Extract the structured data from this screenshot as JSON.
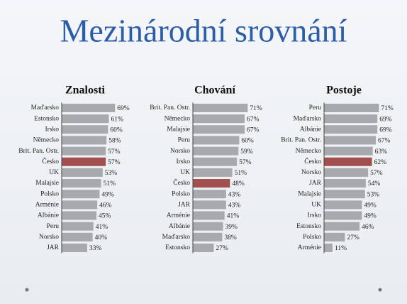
{
  "title": "Mezinárodní srovnání",
  "chart_data": [
    {
      "type": "bar",
      "title": "Znalosti",
      "categories": [
        "Maďarsko",
        "Estonsko",
        "Irsko",
        "Německo",
        "Brit. Pan. Ostr.",
        "Česko",
        "UK",
        "Malajsie",
        "Polsko",
        "Arménie",
        "Albánie",
        "Peru",
        "Norsko",
        "JAR"
      ],
      "values": [
        69,
        61,
        60,
        58,
        57,
        57,
        53,
        51,
        49,
        46,
        45,
        41,
        40,
        33
      ],
      "value_labels": [
        "69%",
        "61%",
        "60%",
        "58%",
        "57%",
        "57%",
        "53%",
        "51%",
        "49%",
        "46%",
        "45%",
        "41%",
        "40%",
        "33%"
      ],
      "colors": [
        "#a7a9ac",
        "#a7a9ac",
        "#a7a9ac",
        "#a7a9ac",
        "#a7a9ac",
        "#a14f4f",
        "#a7a9ac",
        "#a7a9ac",
        "#a7a9ac",
        "#a7a9ac",
        "#a7a9ac",
        "#a7a9ac",
        "#a7a9ac",
        "#a7a9ac"
      ]
    },
    {
      "type": "bar",
      "title": "Chování",
      "categories": [
        "Brit. Pan. Ostr.",
        "Německo",
        "Malajsie",
        "Peru",
        "Norsko",
        "Irsko",
        "UK",
        "Česko",
        "Polsko",
        "JAR",
        "Arménie",
        "Albánie",
        "Maďarsko",
        "Estonsko"
      ],
      "values": [
        71,
        67,
        67,
        60,
        59,
        57,
        51,
        48,
        43,
        43,
        41,
        39,
        38,
        27
      ],
      "value_labels": [
        "71%",
        "67%",
        "67%",
        "60%",
        "59%",
        "57%",
        "51%",
        "48%",
        "43%",
        "43%",
        "41%",
        "39%",
        "38%",
        "27%"
      ],
      "colors": [
        "#a7a9ac",
        "#a7a9ac",
        "#a7a9ac",
        "#a7a9ac",
        "#a7a9ac",
        "#a7a9ac",
        "#a7a9ac",
        "#a14f4f",
        "#a7a9ac",
        "#a7a9ac",
        "#a7a9ac",
        "#a7a9ac",
        "#a7a9ac",
        "#a7a9ac"
      ]
    },
    {
      "type": "bar",
      "title": "Postoje",
      "categories": [
        "Peru",
        "Maďarsko",
        "Albánie",
        "Brit. Pan. Ostr.",
        "Německo",
        "Česko",
        "Norsko",
        "JAR",
        "Malajsie",
        "UK",
        "Irsko",
        "Estonsko",
        "Polsko",
        "Arménie"
      ],
      "values": [
        71,
        69,
        69,
        67,
        63,
        62,
        57,
        54,
        53,
        49,
        49,
        46,
        27,
        11
      ],
      "value_labels": [
        "71%",
        "69%",
        "69%",
        "67%",
        "63%",
        "62%",
        "57%",
        "54%",
        "53%",
        "49%",
        "49%",
        "46%",
        "27%",
        "11%"
      ],
      "colors": [
        "#a7a9ac",
        "#a7a9ac",
        "#a7a9ac",
        "#a7a9ac",
        "#a7a9ac",
        "#a14f4f",
        "#a7a9ac",
        "#a7a9ac",
        "#a7a9ac",
        "#a7a9ac",
        "#a7a9ac",
        "#a7a9ac",
        "#a7a9ac",
        "#a7a9ac"
      ]
    }
  ]
}
